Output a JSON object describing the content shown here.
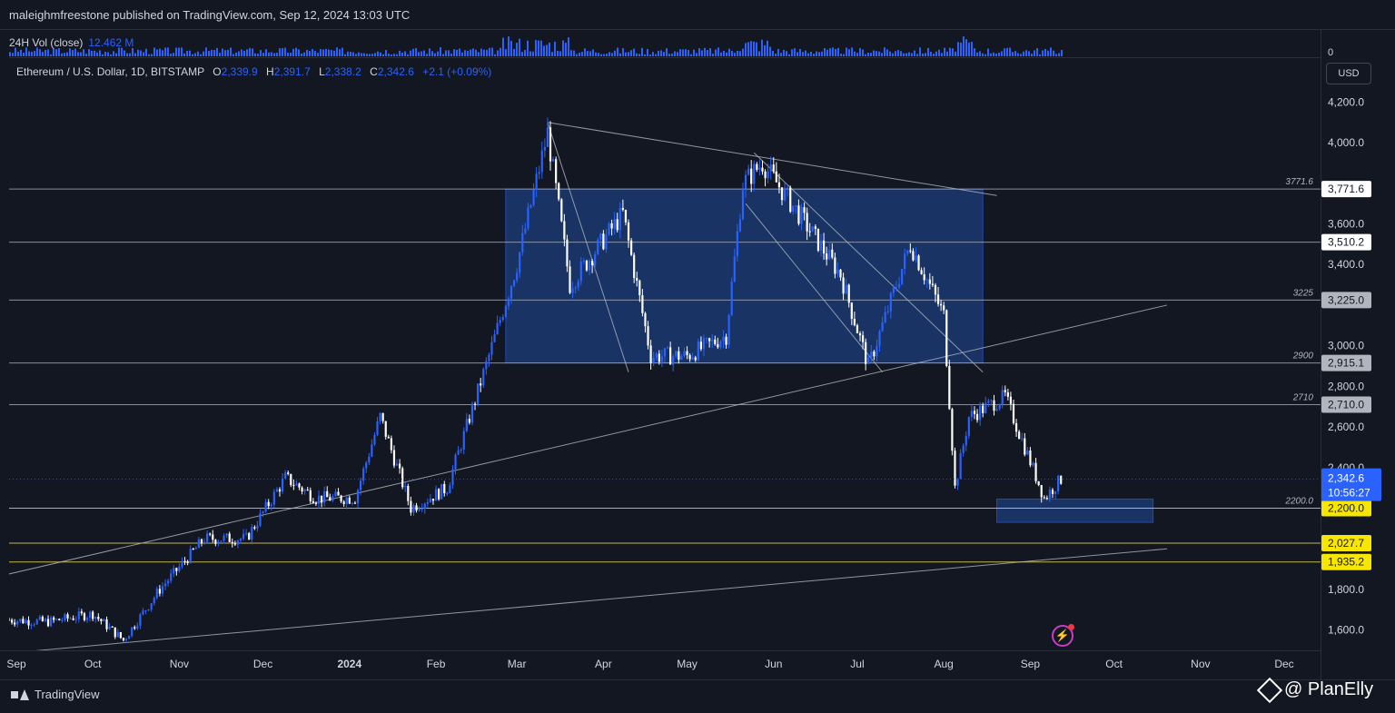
{
  "header": {
    "publisher": "maleighmfreestone published on TradingView.com, Sep 12, 2024 13:03 UTC"
  },
  "volume": {
    "label": "24H Vol (close)",
    "value": "12.462 M",
    "zero": "0"
  },
  "legend": {
    "symbol": "Ethereum / U.S. Dollar, 1D, BITSTAMP",
    "o_key": "O",
    "o_val": "2,339.9",
    "h_key": "H",
    "h_val": "2,391.7",
    "l_key": "L",
    "l_val": "2,338.2",
    "c_key": "C",
    "c_val": "2,342.6",
    "change": "+2.1 (+0.09%)"
  },
  "currency_button": "USD",
  "footer": {
    "brand": "TradingView",
    "watermark": "@ PlanElly"
  },
  "colors": {
    "background": "#131722",
    "accent": "#2962ff",
    "candle_up": "#2962ff",
    "candle_down": "#ffffff",
    "zone": "#1e4a9a",
    "yellow": "#d9c64a"
  },
  "chart_data": {
    "type": "candlestick",
    "ylim": [
      1500,
      4300
    ],
    "x_months": [
      "Sep",
      "Oct",
      "Nov",
      "Dec",
      "2024",
      "Feb",
      "Mar",
      "Apr",
      "May",
      "Jun",
      "Jul",
      "Aug",
      "Sep",
      "Oct",
      "Nov",
      "Dec"
    ],
    "price_ticks": [
      "4,200.0",
      "4,000.0",
      "3,600.0",
      "3,400.0",
      "3,000.0",
      "2,800.0",
      "2,600.0",
      "2,400.0",
      "1,800.0",
      "1,600.0"
    ],
    "price_tick_values": [
      4200,
      4000,
      3600,
      3400,
      3000,
      2800,
      2600,
      2400,
      1800,
      1600
    ],
    "series_points": [
      {
        "d": "2023-09-01",
        "p": 1650
      },
      {
        "d": "2023-09-15",
        "p": 1640
      },
      {
        "d": "2023-10-01",
        "p": 1680
      },
      {
        "d": "2023-10-12",
        "p": 1550
      },
      {
        "d": "2023-10-25",
        "p": 1800
      },
      {
        "d": "2023-11-10",
        "p": 2050
      },
      {
        "d": "2023-11-25",
        "p": 2050
      },
      {
        "d": "2023-12-09",
        "p": 2350
      },
      {
        "d": "2023-12-20",
        "p": 2250
      },
      {
        "d": "2024-01-03",
        "p": 2250
      },
      {
        "d": "2024-01-12",
        "p": 2650
      },
      {
        "d": "2024-01-23",
        "p": 2200
      },
      {
        "d": "2024-02-05",
        "p": 2300
      },
      {
        "d": "2024-02-20",
        "p": 2950
      },
      {
        "d": "2024-03-01",
        "p": 3400
      },
      {
        "d": "2024-03-12",
        "p": 4050
      },
      {
        "d": "2024-03-20",
        "p": 3300
      },
      {
        "d": "2024-04-08",
        "p": 3650
      },
      {
        "d": "2024-04-18",
        "p": 2950
      },
      {
        "d": "2024-05-01",
        "p": 2950
      },
      {
        "d": "2024-05-15",
        "p": 3050
      },
      {
        "d": "2024-05-21",
        "p": 3800
      },
      {
        "d": "2024-05-28",
        "p": 3900
      },
      {
        "d": "2024-06-10",
        "p": 3650
      },
      {
        "d": "2024-06-25",
        "p": 3350
      },
      {
        "d": "2024-07-05",
        "p": 2900
      },
      {
        "d": "2024-07-20",
        "p": 3500
      },
      {
        "d": "2024-08-01",
        "p": 3150
      },
      {
        "d": "2024-08-05",
        "p": 2300
      },
      {
        "d": "2024-08-10",
        "p": 2650
      },
      {
        "d": "2024-08-23",
        "p": 2750
      },
      {
        "d": "2024-09-06",
        "p": 2250
      },
      {
        "d": "2024-09-12",
        "p": 2342.6
      }
    ],
    "levels": [
      {
        "name": "3771.6",
        "label": "3771.6",
        "price": 3771.6,
        "axis": "3,771.6"
      },
      {
        "name": "3510.2",
        "label": "",
        "price": 3510.2,
        "axis": "3,510.2"
      },
      {
        "name": "3225",
        "label": "3225",
        "price": 3225.0,
        "axis": "3,225.0"
      },
      {
        "name": "2900",
        "label": "2900",
        "price": 2915.1,
        "axis": "2,915.1"
      },
      {
        "name": "2710",
        "label": "2710",
        "price": 2710.0,
        "axis": "2,710.0"
      },
      {
        "name": "2200",
        "label": "2200.0",
        "price": 2200.0,
        "axis": "2,200.0"
      },
      {
        "name": "2027.7",
        "label": "",
        "price": 2027.7,
        "axis": "2,027.7"
      },
      {
        "name": "1935.2",
        "label": "",
        "price": 1935.2,
        "axis": "1,935.2"
      }
    ],
    "current": {
      "price": 2342.6,
      "label": "2,342.6",
      "countdown": "10:56:27"
    },
    "zones": [
      {
        "name": "range-box",
        "from": "2024-02-26",
        "to": "2024-08-15",
        "top": 3771.6,
        "bottom": 2915.1
      },
      {
        "name": "support-box",
        "from": "2024-08-20",
        "to": "2024-10-15",
        "top": 2245,
        "bottom": 2130
      }
    ],
    "trendlines": [
      {
        "name": "upper-trendline",
        "x1": "2024-03-12",
        "y1": 4100,
        "x2": "2024-08-20",
        "y2": 3740
      },
      {
        "name": "rising-trendline-1",
        "x1": "2023-08-27",
        "y1": 1860,
        "x2": "2024-10-20",
        "y2": 3200
      },
      {
        "name": "rising-trendline-2",
        "x1": "2023-08-27",
        "y1": 1480,
        "x2": "2024-10-20",
        "y2": 2000
      },
      {
        "name": "channel-line-1",
        "x1": "2024-03-12",
        "y1": 4100,
        "x2": "2024-04-10",
        "y2": 2870
      },
      {
        "name": "channel-line-2",
        "x1": "2024-05-25",
        "y1": 3950,
        "x2": "2024-08-15",
        "y2": 2870
      },
      {
        "name": "channel-line-3",
        "x1": "2024-05-22",
        "y1": 3700,
        "x2": "2024-07-10",
        "y2": 2870
      }
    ]
  }
}
